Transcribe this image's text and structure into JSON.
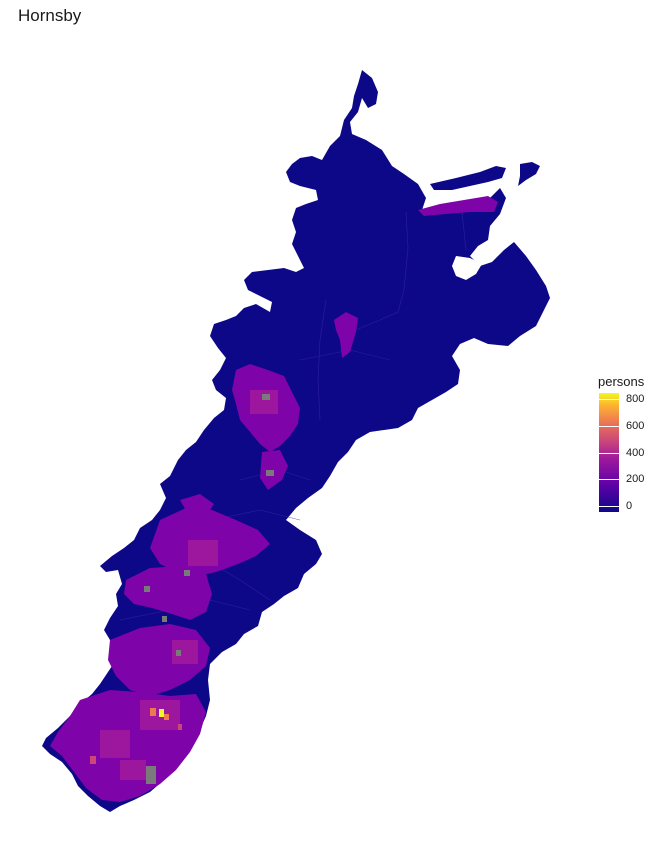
{
  "title": "Hornsby",
  "legend": {
    "title": "persons",
    "min": 0,
    "max": 800,
    "ticks": [
      {
        "value": 0,
        "label": "0"
      },
      {
        "value": 200,
        "label": "200"
      },
      {
        "value": 400,
        "label": "400"
      },
      {
        "value": 600,
        "label": "600"
      },
      {
        "value": 800,
        "label": "800"
      }
    ],
    "palette": [
      "#0d0887",
      "#5c01a6",
      "#9c179e",
      "#cc4778",
      "#ed7953",
      "#fdb42f",
      "#f0f921"
    ]
  },
  "colors": {
    "background": "#ffffff",
    "low": "#0d0887",
    "mid": "#7e03a8",
    "high": "#f0f921",
    "missing": "#7a7a7a"
  }
}
